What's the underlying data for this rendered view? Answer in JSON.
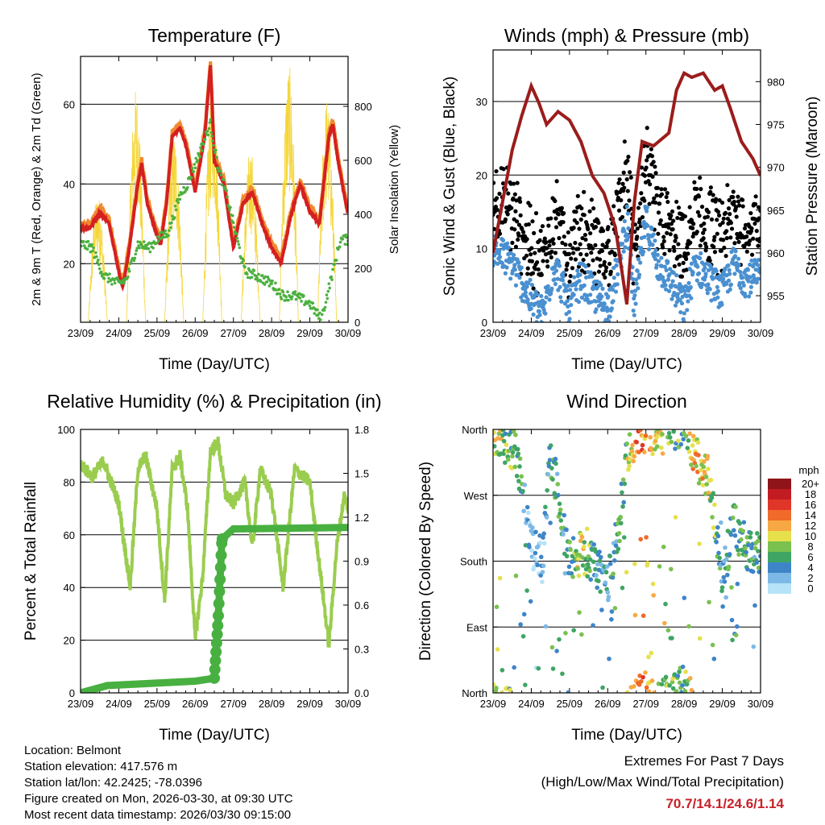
{
  "colors": {
    "extremes": "#c8202a"
  },
  "info": {
    "location": "Location: Belmont",
    "elevation": "Station elevation: 417.576 m",
    "latlon": "Station lat/lon: 42.2425; -78.0396",
    "created": "Figure created on Mon, 2026-03-30, at 09:30 UTC",
    "latest": "Most recent data timestamp: 2026/03/30 09:15:00"
  },
  "extremes": {
    "title": "Extremes For Past 7 Days",
    "subtitle": "(High/Low/Max Wind/Total Precipitation)",
    "values": "70.7/14.1/24.6/1.14"
  },
  "chart_data": [
    {
      "type": "line",
      "title": "Temperature (F)",
      "xlabel": "Time (Day/UTC)",
      "ylabel": "2m & 9m T (Red, Orange) & 2m Td (Green)",
      "ylabel_right": "Solar Insolation (Yellow)",
      "xlim": [
        23,
        30
      ],
      "xticks": [
        23,
        24,
        25,
        26,
        27,
        28,
        29,
        30
      ],
      "xticklabels": [
        "23/09",
        "24/09",
        "25/09",
        "26/09",
        "27/09",
        "28/09",
        "29/09",
        "30/09"
      ],
      "ylim": [
        5.3,
        72
      ],
      "yticks": [
        20,
        40,
        60
      ],
      "ylim_right": [
        0,
        985
      ],
      "yticks_right": [
        0,
        200,
        400,
        600,
        800
      ],
      "grid": true,
      "series": [
        {
          "name": "2m T",
          "color": "#d42020",
          "x": [
            23,
            23.25,
            23.5,
            23.75,
            24,
            24.1,
            24.25,
            24.5,
            24.6,
            24.75,
            25,
            25.1,
            25.25,
            25.4,
            25.6,
            25.75,
            26,
            26.25,
            26.4,
            26.5,
            26.75,
            27,
            27.25,
            27.5,
            27.75,
            28,
            28.25,
            28.5,
            28.75,
            29,
            29.25,
            29.5,
            29.6,
            29.75,
            30
          ],
          "y": [
            29,
            29,
            33,
            30,
            18,
            14,
            22,
            40,
            45,
            35,
            27,
            25,
            35,
            52,
            54,
            50,
            38,
            52,
            70,
            46,
            40,
            24,
            35,
            38,
            30,
            24,
            20,
            32,
            40,
            33,
            30,
            52,
            55,
            45,
            32
          ]
        },
        {
          "name": "9m T",
          "color": "#f08a30",
          "offset": 1.2
        },
        {
          "name": "2m Td",
          "color": "#4cb040",
          "x": [
            23,
            23.3,
            23.6,
            24,
            24.2,
            24.5,
            24.8,
            25,
            25.3,
            25.6,
            25.8,
            26,
            26.2,
            26.4,
            26.6,
            26.8,
            27,
            27.3,
            27.6,
            28,
            28.3,
            28.6,
            29,
            29.3,
            29.6,
            29.8,
            30
          ],
          "y": [
            25,
            24,
            17,
            15,
            16,
            25,
            24,
            26,
            28,
            37,
            40,
            45,
            50,
            55,
            44,
            38,
            30,
            18,
            17,
            15,
            12,
            12,
            10,
            6,
            18,
            26,
            26
          ]
        },
        {
          "name": "Solar Insolation",
          "color": "#f5d63a",
          "peak_day": [
            23,
            24,
            25,
            26,
            27,
            28,
            29
          ],
          "peak_value": [
            480,
            870,
            700,
            900,
            650,
            960,
            840
          ]
        }
      ]
    },
    {
      "type": "scatter",
      "title": "Winds (mph) & Pressure (mb)",
      "xlabel": "Time (Day/UTC)",
      "ylabel": "Sonic Wind & Gust (Blue, Black)",
      "ylabel_right": "Station Pressure (Maroon)",
      "xlim": [
        23,
        30
      ],
      "xticks": [
        23,
        24,
        25,
        26,
        27,
        28,
        29,
        30
      ],
      "xticklabels": [
        "23/09",
        "24/09",
        "25/09",
        "26/09",
        "27/09",
        "28/09",
        "29/09",
        "30/09"
      ],
      "ylim": [
        0,
        37
      ],
      "yticks": [
        0,
        10,
        20,
        30
      ],
      "ylim_right": [
        951.9,
        983.7
      ],
      "yticks_right": [
        955,
        960,
        965,
        970,
        975,
        980
      ],
      "grid": true,
      "series": [
        {
          "name": "Sonic Wind",
          "color": "#4a90d0",
          "x": [
            23,
            23.5,
            24,
            24.3,
            24.6,
            25,
            25.3,
            25.6,
            26,
            26.3,
            26.5,
            26.7,
            27,
            27.3,
            27.6,
            28,
            28.3,
            28.6,
            29,
            29.3,
            29.6,
            30
          ],
          "y": [
            10,
            8,
            3,
            1,
            8,
            2,
            6,
            4,
            2,
            8,
            14,
            2,
            14,
            8,
            6,
            2,
            8,
            6,
            4,
            8,
            6,
            6
          ]
        },
        {
          "name": "Gust",
          "color": "#000000"
        },
        {
          "name": "Station Pressure",
          "color": "#9b1c1c",
          "x": [
            23,
            23.25,
            23.5,
            23.75,
            24,
            24.2,
            24.4,
            24.7,
            25,
            25.3,
            25.6,
            25.9,
            26.2,
            26.5,
            26.7,
            26.9,
            27.2,
            27.6,
            27.8,
            28,
            28.2,
            28.5,
            28.8,
            29,
            29.2,
            29.5,
            29.8,
            30
          ],
          "y": [
            960,
            966,
            972,
            976,
            979.5,
            977.5,
            975,
            976.5,
            975.5,
            973,
            969,
            967,
            963,
            954,
            966,
            973,
            972.5,
            974,
            979,
            981,
            980.5,
            981,
            979,
            979.5,
            977,
            973,
            971,
            969
          ]
        }
      ]
    },
    {
      "type": "line",
      "title": "Relative Humidity (%) & Precipitation (in)",
      "xlabel": "Time (Day/UTC)",
      "ylabel": "Percent & Total Rainfall",
      "xlim": [
        23,
        30
      ],
      "xticks": [
        23,
        24,
        25,
        26,
        27,
        28,
        29,
        30
      ],
      "xticklabels": [
        "23/09",
        "24/09",
        "25/09",
        "26/09",
        "27/09",
        "28/09",
        "29/09",
        "30/09"
      ],
      "ylim": [
        0,
        100
      ],
      "yticks": [
        0,
        20,
        40,
        60,
        80,
        100
      ],
      "ylim_right": [
        0,
        1.8
      ],
      "yticks_right": [
        "0.0",
        "0.3",
        "0.6",
        "0.9",
        "1.2",
        "1.5",
        "1.8"
      ],
      "grid": true,
      "series": [
        {
          "name": "Relative Humidity",
          "color": "#9acd4f",
          "x": [
            23,
            23.3,
            23.6,
            24,
            24.3,
            24.5,
            24.7,
            25,
            25.2,
            25.4,
            25.6,
            25.8,
            26,
            26.2,
            26.4,
            26.6,
            26.8,
            27,
            27.3,
            27.5,
            27.7,
            28,
            28.3,
            28.6,
            29,
            29.2,
            29.5,
            29.7,
            29.9,
            30
          ],
          "y": [
            87,
            82,
            88,
            72,
            40,
            85,
            90,
            70,
            35,
            85,
            90,
            70,
            20,
            45,
            92,
            95,
            75,
            72,
            80,
            55,
            85,
            75,
            40,
            85,
            80,
            55,
            18,
            55,
            75,
            70
          ]
        },
        {
          "name": "Total Precipitation",
          "color": "#48b040",
          "unit": "in",
          "x": [
            23,
            23.7,
            26,
            26.5,
            26.6,
            26.7,
            27,
            30
          ],
          "y": [
            0,
            0.05,
            0.08,
            0.1,
            0.5,
            1.05,
            1.12,
            1.13
          ]
        }
      ]
    },
    {
      "type": "scatter",
      "title": "Wind Direction",
      "xlabel": "Time (Day/UTC)",
      "ylabel": "Direction (Colored By Speed)",
      "xlim": [
        23,
        30
      ],
      "xticks": [
        23,
        24,
        25,
        26,
        27,
        28,
        29,
        30
      ],
      "xticklabels": [
        "23/09",
        "24/09",
        "25/09",
        "26/09",
        "27/09",
        "28/09",
        "29/09",
        "30/09"
      ],
      "ylim": [
        0,
        360
      ],
      "yticks": [
        0,
        90,
        180,
        270,
        360
      ],
      "yticklabels": [
        "North",
        "East",
        "South",
        "West",
        "North"
      ],
      "grid": true,
      "series": [
        {
          "name": "Direction",
          "x": [
            23,
            23.3,
            23.6,
            24,
            24.3,
            24.5,
            25,
            25.3,
            25.6,
            26,
            26.3,
            26.5,
            26.8,
            27,
            27.3,
            27.6,
            28,
            28.3,
            28.6,
            29,
            29.3,
            29.6,
            30
          ],
          "y": [
            355,
            345,
            330,
            200,
            180,
            330,
            180,
            190,
            180,
            150,
            230,
            330,
            355,
            358,
            355,
            355,
            370,
            320,
            300,
            160,
            230,
            200,
            190
          ],
          "speed": [
            10,
            8,
            6,
            3,
            2,
            6,
            5,
            10,
            5,
            4,
            6,
            8,
            14,
            12,
            10,
            8,
            6,
            12,
            10,
            4,
            7,
            6,
            5
          ]
        }
      ],
      "legend": {
        "title": "mph",
        "position": "right",
        "labels": [
          "20+",
          "18",
          "16",
          "14",
          "12",
          "10",
          "8",
          "6",
          "4",
          "2",
          "0"
        ],
        "colors": [
          "#8e1419",
          "#c21b22",
          "#e0362a",
          "#f06a2a",
          "#f7a844",
          "#e5e04c",
          "#7ac14f",
          "#3fa564",
          "#3e85c8",
          "#7db9e6",
          "#b6e3f7"
        ]
      }
    }
  ]
}
